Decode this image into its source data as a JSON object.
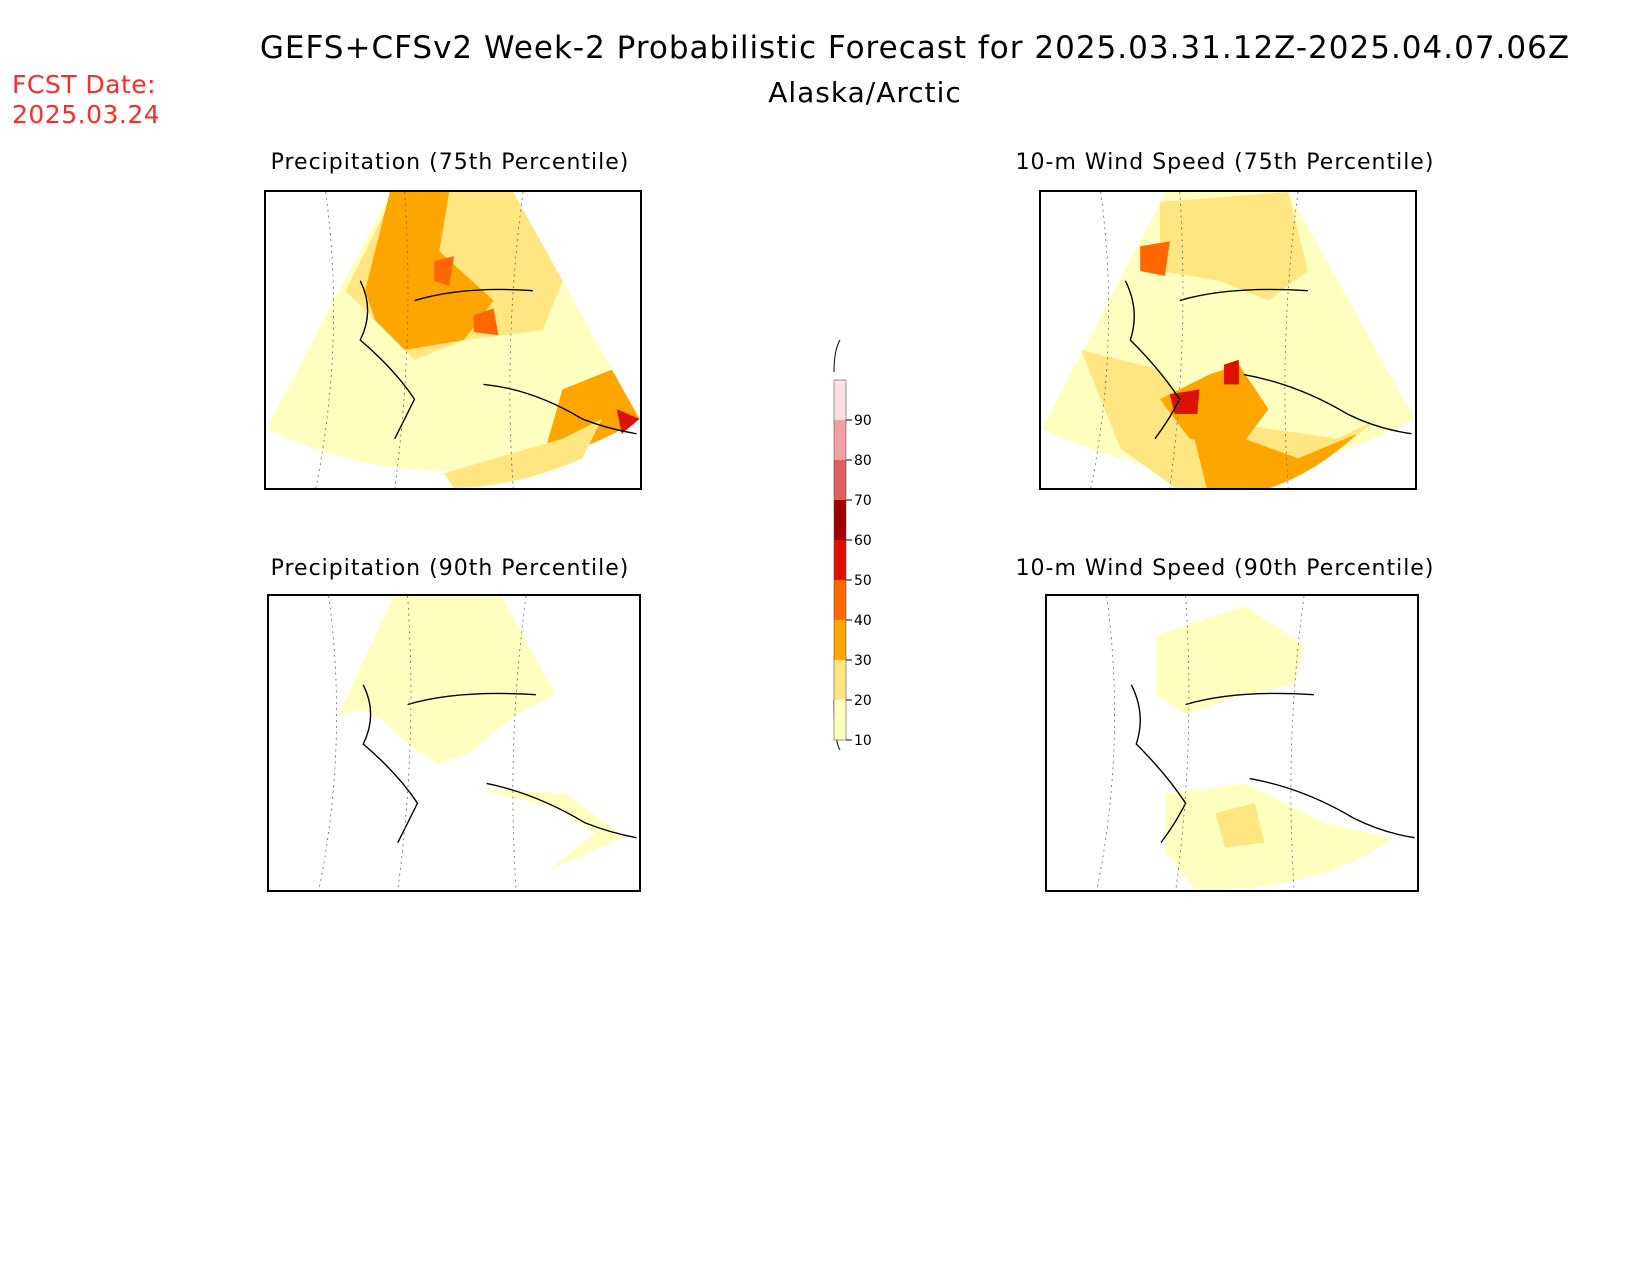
{
  "header": {
    "title": "GEFS+CFSv2 Week-2 Probabilistic Forecast for 2025.03.31.12Z-2025.04.07.06Z",
    "region": "Alaska/Arctic",
    "fcst_label": "FCST Date:",
    "fcst_date": "2025.03.24"
  },
  "panels": [
    {
      "title": "Precipitation (75th Percentile)"
    },
    {
      "title": "10-m Wind Speed (75th Percentile)"
    },
    {
      "title": "Precipitation (90th Percentile)"
    },
    {
      "title": "10-m Wind Speed (90th Percentile)"
    }
  ],
  "legend": {
    "ticks": [
      "10",
      "20",
      "30",
      "40",
      "50",
      "60",
      "70",
      "80",
      "90"
    ],
    "colors": [
      "#ffffc0",
      "#ffe680",
      "#ffa500",
      "#ff6600",
      "#dd1100",
      "#a00000",
      "#e06060",
      "#f0a0a0",
      "#ffe0e0"
    ]
  }
}
